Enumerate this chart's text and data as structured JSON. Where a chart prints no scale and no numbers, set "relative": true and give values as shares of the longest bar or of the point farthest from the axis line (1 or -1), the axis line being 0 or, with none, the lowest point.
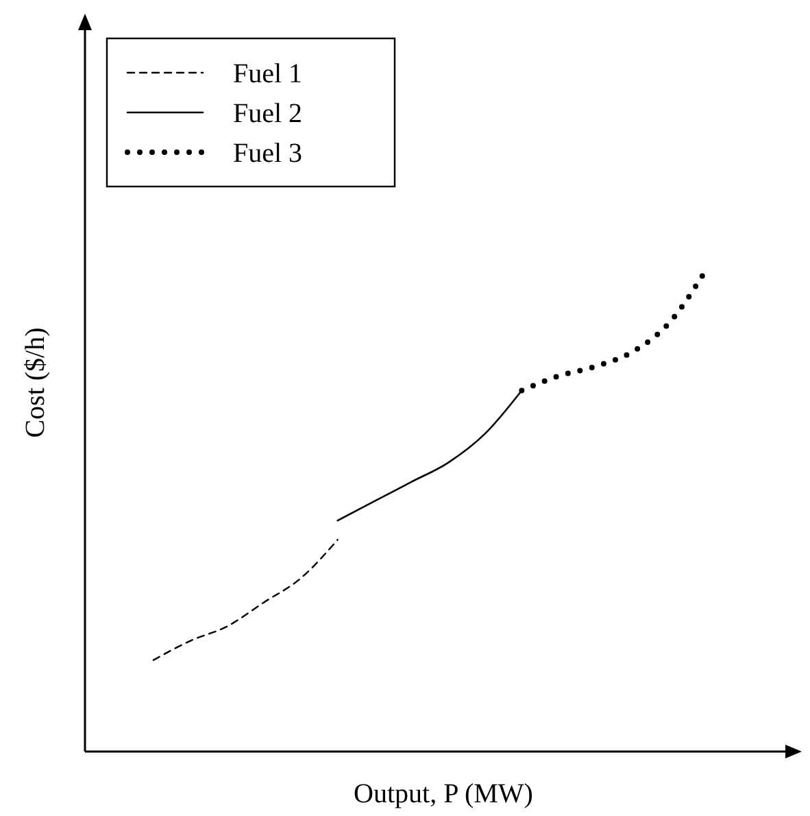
{
  "chart_data": {
    "type": "line",
    "relative": true,
    "xlabel": "Output, P (MW)",
    "ylabel": "Cost ($/h)",
    "legend": "top left",
    "marker": "none",
    "categories": [
      null,
      null,
      null,
      null,
      null,
      null,
      null,
      null,
      null,
      null,
      null,
      null,
      null,
      null,
      null,
      null
    ],
    "series": [
      {
        "name": "Fuel 1",
        "color": "#000000",
        "line_style": "dashed",
        "values": [
          0.19,
          0.23,
          0.26,
          0.31,
          0.36,
          0.44,
          null,
          null,
          null,
          null,
          null,
          null,
          null,
          null,
          null,
          null
        ]
      },
      {
        "name": "Fuel 2",
        "color": "#000000",
        "line_style": "solid",
        "values": [
          null,
          null,
          null,
          null,
          null,
          0.48,
          0.52,
          0.56,
          0.6,
          0.66,
          0.75,
          null,
          null,
          null,
          null,
          null
        ]
      },
      {
        "name": "Fuel 3",
        "color": "#000000",
        "line_style": "dotted",
        "values": [
          null,
          null,
          null,
          null,
          null,
          null,
          null,
          null,
          null,
          null,
          0.75,
          0.78,
          0.8,
          0.83,
          0.89,
          1
        ]
      }
    ]
  }
}
